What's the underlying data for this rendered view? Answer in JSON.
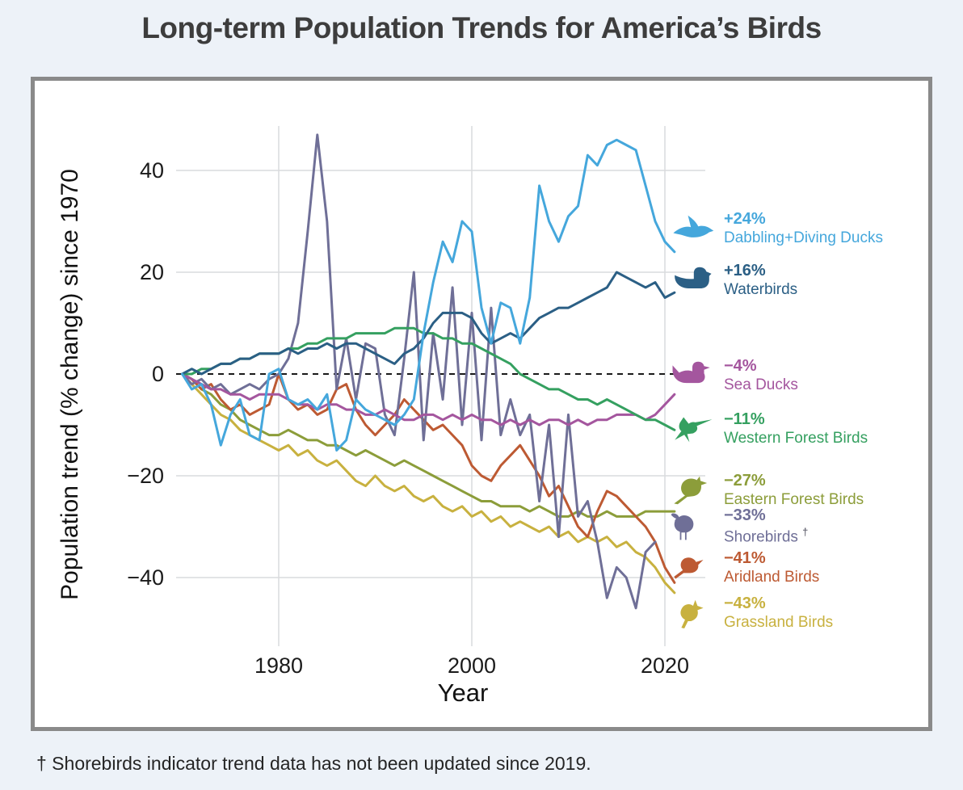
{
  "page": {
    "title": "Long-term Population Trends for America’s Birds",
    "footnote": "† Shorebirds indicator trend data has not been updated since 2019."
  },
  "chart_data": {
    "type": "line",
    "title": "Long-term Population Trends for America’s Birds",
    "xlabel": "Year",
    "ylabel": "Population trend (% change) since 1970",
    "xlim": [
      1970,
      2022
    ],
    "ylim": [
      -50,
      50
    ],
    "grid": true,
    "zero_line": "dashed-black",
    "legend_position": "right",
    "xticks": [
      1980,
      2000,
      2020
    ],
    "yticks": [
      {
        "value": 40,
        "label": "40"
      },
      {
        "value": 20,
        "label": "20"
      },
      {
        "value": 0,
        "label": "0"
      },
      {
        "value": -20,
        "label": "−20"
      },
      {
        "value": -40,
        "label": "−40"
      }
    ],
    "years": [
      1970,
      1971,
      1972,
      1973,
      1974,
      1975,
      1976,
      1977,
      1978,
      1979,
      1980,
      1981,
      1982,
      1983,
      1984,
      1985,
      1986,
      1987,
      1988,
      1989,
      1990,
      1991,
      1992,
      1993,
      1994,
      1995,
      1996,
      1997,
      1998,
      1999,
      2000,
      2001,
      2002,
      2003,
      2004,
      2005,
      2006,
      2007,
      2008,
      2009,
      2010,
      2011,
      2012,
      2013,
      2014,
      2015,
      2016,
      2017,
      2018,
      2019,
      2020,
      2021
    ],
    "series": [
      {
        "name": "Dabbling+Diving Ducks",
        "legend_value": "+24%",
        "final_trend_pct": 24,
        "color": "#45a7dc",
        "icon": "flying-duck-icon",
        "values": [
          0,
          -3,
          -2,
          -6,
          -14,
          -8,
          -5,
          -12,
          -13,
          0,
          1,
          -5,
          -6,
          -5,
          -7,
          -4,
          -15,
          -13,
          -5,
          -7,
          -8,
          -9,
          -10,
          -8,
          -5,
          8,
          18,
          26,
          22,
          30,
          28,
          13,
          6,
          14,
          13,
          6,
          15,
          37,
          30,
          26,
          31,
          33,
          43,
          41,
          45,
          46,
          45,
          44,
          37,
          30,
          26,
          24
        ]
      },
      {
        "name": "Waterbirds",
        "legend_value": "+16%",
        "final_trend_pct": 16,
        "color": "#2b5f85",
        "icon": "swimming-duck-icon",
        "values": [
          0,
          1,
          0,
          1,
          2,
          2,
          3,
          3,
          4,
          4,
          4,
          5,
          4,
          5,
          5,
          6,
          5,
          6,
          6,
          5,
          4,
          3,
          2,
          4,
          5,
          7,
          10,
          12,
          12,
          12,
          11,
          8,
          6,
          7,
          8,
          7,
          9,
          11,
          12,
          13,
          13,
          14,
          15,
          16,
          17,
          20,
          19,
          18,
          17,
          18,
          15,
          16
        ]
      },
      {
        "name": "Sea Ducks",
        "legend_value": "−4%",
        "final_trend_pct": -4,
        "color": "#a4569e",
        "icon": "sea-duck-icon",
        "values": [
          0,
          -1,
          -2,
          -3,
          -3,
          -4,
          -4,
          -5,
          -4,
          -4,
          -4,
          -5,
          -6,
          -6,
          -7,
          -6,
          -6,
          -7,
          -7,
          -8,
          -8,
          -7,
          -8,
          -9,
          -9,
          -8,
          -8,
          -9,
          -8,
          -9,
          -8,
          -9,
          -9,
          -10,
          -9,
          -10,
          -9,
          -10,
          -9,
          -9,
          -10,
          -9,
          -10,
          -9,
          -9,
          -8,
          -8,
          -8,
          -9,
          -8,
          -6,
          -4
        ]
      },
      {
        "name": "Western Forest Birds",
        "legend_value": "−11%",
        "final_trend_pct": -11,
        "color": "#35a060",
        "icon": "hummingbird-icon",
        "values": [
          0,
          0,
          1,
          1,
          2,
          2,
          3,
          3,
          4,
          4,
          4,
          5,
          5,
          6,
          6,
          7,
          7,
          7,
          8,
          8,
          8,
          8,
          9,
          9,
          9,
          8,
          8,
          7,
          7,
          6,
          6,
          5,
          4,
          3,
          2,
          0,
          -1,
          -2,
          -3,
          -3,
          -4,
          -5,
          -5,
          -6,
          -5,
          -6,
          -7,
          -8,
          -9,
          -9,
          -10,
          -11
        ]
      },
      {
        "name": "Eastern Forest Birds",
        "legend_value": "−27%",
        "final_trend_pct": -27,
        "color": "#8c9d3a",
        "icon": "songbird-icon",
        "values": [
          0,
          -1,
          -3,
          -4,
          -6,
          -7,
          -9,
          -10,
          -11,
          -12,
          -12,
          -11,
          -12,
          -13,
          -13,
          -14,
          -14,
          -15,
          -16,
          -15,
          -16,
          -17,
          -18,
          -17,
          -18,
          -19,
          -20,
          -21,
          -22,
          -23,
          -24,
          -25,
          -25,
          -26,
          -26,
          -26,
          -27,
          -26,
          -27,
          -28,
          -28,
          -27,
          -28,
          -28,
          -27,
          -28,
          -28,
          -28,
          -27,
          -27,
          -27,
          -27
        ]
      },
      {
        "name": "Shorebirds",
        "note_mark": "†",
        "legend_value": "−33%",
        "final_trend_pct": -33,
        "color": "#6f6f97",
        "icon": "curlew-icon",
        "values": [
          0,
          -2,
          -1,
          -3,
          -2,
          -4,
          -3,
          -2,
          -3,
          -1,
          0,
          3,
          10,
          28,
          47,
          30,
          -3,
          7,
          -5,
          6,
          5,
          -8,
          -12,
          3,
          20,
          -13,
          8,
          -5,
          17,
          -10,
          12,
          -13,
          13,
          -12,
          -5,
          -12,
          -8,
          -25,
          -10,
          -32,
          -8,
          -28,
          -25,
          -33,
          -44,
          -38,
          -40,
          -46,
          -35,
          -33,
          null,
          null
        ]
      },
      {
        "name": "Aridland Birds",
        "legend_value": "−41%",
        "final_trend_pct": -41,
        "color": "#bd5a33",
        "icon": "small-bird-icon",
        "values": [
          0,
          -1,
          -3,
          -2,
          -5,
          -7,
          -6,
          -8,
          -7,
          -6,
          0,
          -5,
          -7,
          -6,
          -8,
          -7,
          -3,
          -2,
          -7,
          -10,
          -12,
          -10,
          -8,
          -5,
          -7,
          -9,
          -11,
          -10,
          -12,
          -14,
          -18,
          -20,
          -21,
          -18,
          -16,
          -14,
          -17,
          -20,
          -24,
          -22,
          -26,
          -30,
          -32,
          -27,
          -23,
          -24,
          -26,
          -28,
          -30,
          -33,
          -38,
          -41
        ]
      },
      {
        "name": "Grassland Birds",
        "legend_value": "−43%",
        "final_trend_pct": -43,
        "color": "#c8b13f",
        "icon": "standing-bird-icon",
        "values": [
          0,
          -2,
          -4,
          -6,
          -8,
          -9,
          -11,
          -12,
          -13,
          -14,
          -15,
          -14,
          -16,
          -15,
          -17,
          -18,
          -17,
          -19,
          -21,
          -22,
          -20,
          -22,
          -23,
          -22,
          -24,
          -25,
          -24,
          -26,
          -27,
          -26,
          -28,
          -27,
          -29,
          -28,
          -30,
          -29,
          -30,
          -31,
          -30,
          -32,
          -31,
          -33,
          -32,
          -33,
          -32,
          -34,
          -33,
          -35,
          -36,
          -38,
          -41,
          -43
        ]
      }
    ]
  }
}
